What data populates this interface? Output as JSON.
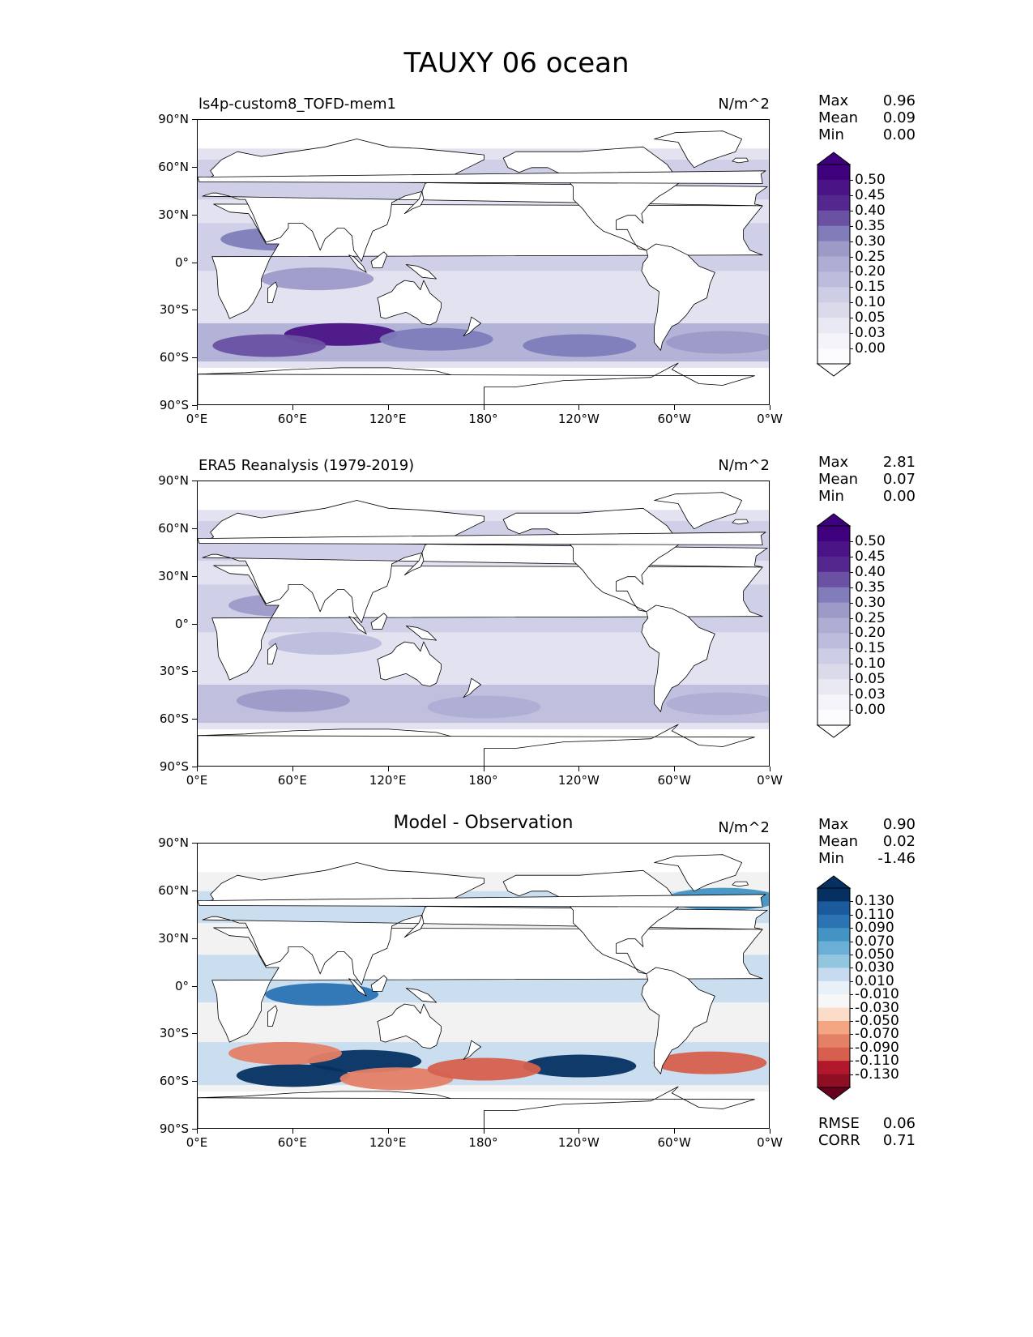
{
  "main_title": "TAUXY 06 ocean",
  "x_ticks": [
    "0°E",
    "60°E",
    "120°E",
    "180°",
    "120°W",
    "60°W",
    "0°W"
  ],
  "y_ticks": [
    "90°N",
    "60°N",
    "30°N",
    "0°",
    "30°S",
    "60°S",
    "90°S"
  ],
  "panels": [
    {
      "title": "ls4p-custom8_TOFD-mem1",
      "units": "N/m^2",
      "stats": {
        "max_label": "Max",
        "max": "0.96",
        "mean_label": "Mean",
        "mean": "0.09",
        "min_label": "Min",
        "min": "0.00"
      },
      "colorbar": {
        "labels": [
          "0.50",
          "0.45",
          "0.40",
          "0.35",
          "0.30",
          "0.25",
          "0.20",
          "0.15",
          "0.10",
          "0.05",
          "0.03",
          "0.00"
        ],
        "colors": [
          "#3f007d",
          "#4a1486",
          "#54278f",
          "#6a51a3",
          "#807dba",
          "#9e9ac8",
          "#aeaed5",
          "#bcbddc",
          "#cdcde6",
          "#dadaeb",
          "#e9e9f3",
          "#f5f4fa",
          "#fcfbfd"
        ],
        "over": "#3f007d",
        "under": "#ffffff"
      }
    },
    {
      "title": "ERA5 Reanalysis (1979-2019)",
      "units": "N/m^2",
      "stats": {
        "max_label": "Max",
        "max": "2.81",
        "mean_label": "Mean",
        "mean": "0.07",
        "min_label": "Min",
        "min": "0.00"
      },
      "colorbar": {
        "labels": [
          "0.50",
          "0.45",
          "0.40",
          "0.35",
          "0.30",
          "0.25",
          "0.20",
          "0.15",
          "0.10",
          "0.05",
          "0.03",
          "0.00"
        ],
        "colors": [
          "#3f007d",
          "#4a1486",
          "#54278f",
          "#6a51a3",
          "#807dba",
          "#9e9ac8",
          "#aeaed5",
          "#bcbddc",
          "#cdcde6",
          "#dadaeb",
          "#e9e9f3",
          "#f5f4fa",
          "#fcfbfd"
        ],
        "over": "#3f007d",
        "under": "#ffffff"
      }
    },
    {
      "title": "Model - Observation",
      "units": "N/m^2",
      "stats": {
        "max_label": "Max",
        "max": "0.90",
        "mean_label": "Mean",
        "mean": "0.02",
        "min_label": "Min",
        "min": "-1.46"
      },
      "colorbar": {
        "labels": [
          "0.130",
          "0.110",
          "0.090",
          "0.070",
          "0.050",
          "0.030",
          "0.010",
          "-0.010",
          "-0.030",
          "-0.050",
          "-0.070",
          "-0.090",
          "-0.110",
          "-0.130"
        ],
        "colors": [
          "#053061",
          "#1b5a9c",
          "#2b73b3",
          "#4393c3",
          "#6baed6",
          "#92c5de",
          "#c6dbef",
          "#e8f1f8",
          "#f7f7f7",
          "#fbdcc8",
          "#f4a582",
          "#e48066",
          "#d6604d",
          "#b2182b",
          "#8e0f24"
        ],
        "over": "#053061",
        "under": "#67001f"
      },
      "metrics": {
        "rmse_label": "RMSE",
        "rmse": "0.06",
        "corr_label": "CORR",
        "corr": "0.71"
      }
    }
  ],
  "chart_data": [
    {
      "type": "heatmap",
      "title": "ls4p-custom8_TOFD-mem1",
      "units": "N/m^2",
      "x_range": [
        0,
        360
      ],
      "y_range": [
        -90,
        90
      ],
      "levels": [
        0.0,
        0.03,
        0.05,
        0.1,
        0.15,
        0.2,
        0.25,
        0.3,
        0.35,
        0.4,
        0.45,
        0.5
      ],
      "max": 0.96,
      "mean": 0.09,
      "min": 0.0,
      "features": [
        {
          "lon": 90,
          "lat": -45,
          "value": 0.45
        },
        {
          "lon": 45,
          "lat": -52,
          "value": 0.35
        },
        {
          "lon": 150,
          "lat": -48,
          "value": 0.3
        },
        {
          "lon": 240,
          "lat": -52,
          "value": 0.3
        },
        {
          "lon": 50,
          "lat": 15,
          "value": 0.3
        },
        {
          "lon": 75,
          "lat": -10,
          "value": 0.25
        },
        {
          "lon": 195,
          "lat": 12,
          "value": 0.2
        },
        {
          "lon": 330,
          "lat": -50,
          "value": 0.25
        }
      ]
    },
    {
      "type": "heatmap",
      "title": "ERA5 Reanalysis (1979-2019)",
      "units": "N/m^2",
      "x_range": [
        0,
        360
      ],
      "y_range": [
        -90,
        90
      ],
      "levels": [
        0.0,
        0.03,
        0.05,
        0.1,
        0.15,
        0.2,
        0.25,
        0.3,
        0.35,
        0.4,
        0.45,
        0.5
      ],
      "max": 2.81,
      "mean": 0.07,
      "min": 0.0,
      "features": [
        {
          "lon": 60,
          "lat": -48,
          "value": 0.25
        },
        {
          "lon": 180,
          "lat": -52,
          "value": 0.22
        },
        {
          "lon": 330,
          "lat": -50,
          "value": 0.2
        },
        {
          "lon": 55,
          "lat": 12,
          "value": 0.25
        },
        {
          "lon": 80,
          "lat": -12,
          "value": 0.15
        },
        {
          "lon": 200,
          "lat": 12,
          "value": 0.15
        }
      ]
    },
    {
      "type": "heatmap",
      "title": "Model - Observation",
      "units": "N/m^2",
      "x_range": [
        0,
        360
      ],
      "y_range": [
        -90,
        90
      ],
      "levels": [
        -0.13,
        -0.11,
        -0.09,
        -0.07,
        -0.05,
        -0.03,
        -0.01,
        0.01,
        0.03,
        0.05,
        0.07,
        0.09,
        0.11,
        0.13
      ],
      "max": 0.9,
      "mean": 0.02,
      "min": -1.46,
      "rmse": 0.06,
      "corr": 0.71,
      "features": [
        {
          "lon": 105,
          "lat": -47,
          "value": 0.13
        },
        {
          "lon": 60,
          "lat": -56,
          "value": 0.13
        },
        {
          "lon": 240,
          "lat": -50,
          "value": 0.13
        },
        {
          "lon": 78,
          "lat": -5,
          "value": 0.09
        },
        {
          "lon": 55,
          "lat": -42,
          "value": -0.09
        },
        {
          "lon": 125,
          "lat": -58,
          "value": -0.09
        },
        {
          "lon": 180,
          "lat": -52,
          "value": -0.11
        },
        {
          "lon": 322,
          "lat": -48,
          "value": -0.11
        },
        {
          "lon": 330,
          "lat": 55,
          "value": 0.07
        }
      ]
    }
  ]
}
